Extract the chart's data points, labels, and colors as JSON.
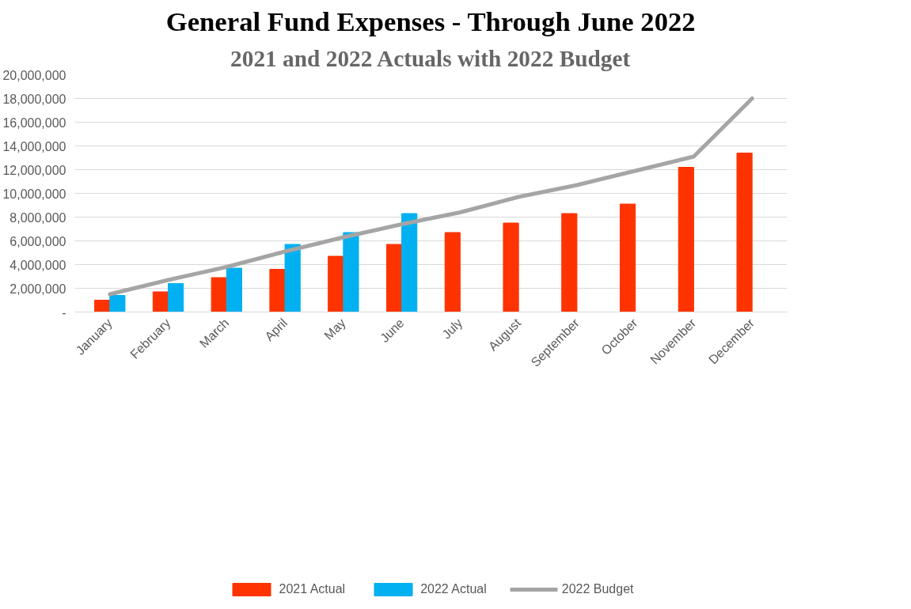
{
  "chart_data": {
    "type": "bar",
    "title": "General Fund Expenses - Through June 2022",
    "subtitle": "2021 and 2022 Actuals with 2022 Budget",
    "categories": [
      "January",
      "February",
      "March",
      "April",
      "May",
      "June",
      "July",
      "August",
      "September",
      "October",
      "November",
      "December"
    ],
    "series": [
      {
        "name": "2021 Actual",
        "color": "#ff3300",
        "values": [
          1000000,
          1700000,
          2900000,
          3600000,
          4700000,
          5700000,
          6700000,
          7500000,
          8300000,
          9100000,
          12200000,
          13400000
        ]
      },
      {
        "name": "2022 Actual",
        "color": "#00b0f0",
        "values": [
          1400000,
          2400000,
          3700000,
          5700000,
          6700000,
          8300000,
          null,
          null,
          null,
          null,
          null,
          null
        ]
      },
      {
        "name": "2022 Budget",
        "type": "line",
        "color": "#a5a5a5",
        "values": [
          1500000,
          2700000,
          3800000,
          5100000,
          6300000,
          7400000,
          8400000,
          9700000,
          10700000,
          11900000,
          13100000,
          18000000
        ]
      }
    ],
    "ylim": [
      0,
      20000000
    ],
    "yticks": [
      {
        "value": 0,
        "label": "-"
      },
      {
        "value": 2000000,
        "label": "2,000,000"
      },
      {
        "value": 4000000,
        "label": "4,000,000"
      },
      {
        "value": 6000000,
        "label": "6,000,000"
      },
      {
        "value": 8000000,
        "label": "8,000,000"
      },
      {
        "value": 10000000,
        "label": "10,000,000"
      },
      {
        "value": 12000000,
        "label": "12,000,000"
      },
      {
        "value": 14000000,
        "label": "14,000,000"
      },
      {
        "value": 16000000,
        "label": "16,000,000"
      },
      {
        "value": 18000000,
        "label": "18,000,000"
      },
      {
        "value": 20000000,
        "label": "20,000,000"
      }
    ],
    "grid": "y",
    "legend": "bottom"
  }
}
